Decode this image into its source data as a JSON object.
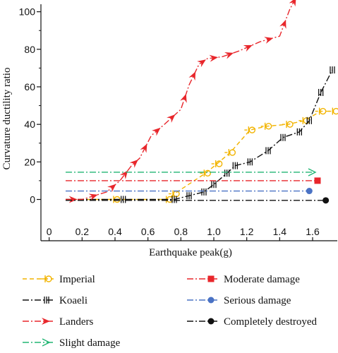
{
  "chart_data": {
    "type": "line",
    "xlabel": "Earthquake peak(g)",
    "ylabel": "Curvature ductility ratio",
    "xlim": [
      -0.05,
      1.75
    ],
    "ylim": [
      -22,
      104
    ],
    "x_ticks": [
      0,
      0.2,
      0.4,
      0.6,
      0.8,
      1.0,
      1.2,
      1.4,
      1.6
    ],
    "x_tick_labels": [
      "0",
      "0.2",
      "0.4",
      "0.6",
      "0.8",
      "1.0",
      "1.2",
      "1.4",
      "1.6"
    ],
    "y_ticks": [
      0,
      20,
      40,
      60,
      80,
      100
    ],
    "y_tick_labels": [
      "0",
      "20",
      "40",
      "60",
      "80",
      "100"
    ],
    "grid": false,
    "legend_position": "bottom",
    "series": [
      {
        "name": "Imperial",
        "color": "#f2b400",
        "style": "dashed-marker-circle",
        "x": [
          0.1,
          0.4,
          0.72,
          0.76,
          0.95,
          1.02,
          1.1,
          1.22,
          1.32,
          1.45,
          1.55,
          1.65,
          1.73
        ],
        "y": [
          0,
          0,
          0,
          3,
          14,
          19,
          25,
          37,
          39,
          40,
          42,
          47,
          47
        ]
      },
      {
        "name": "Koaeli",
        "color": "#111111",
        "style": "dashdot-marker-bars",
        "x": [
          0.1,
          0.45,
          0.76,
          0.85,
          0.94,
          1.0,
          1.08,
          1.13,
          1.22,
          1.33,
          1.42,
          1.52,
          1.58,
          1.65,
          1.72
        ],
        "y": [
          0,
          0,
          0,
          2,
          4,
          8,
          14,
          18,
          20,
          26,
          33,
          36,
          42,
          57,
          69
        ]
      },
      {
        "name": "Landers",
        "color": "#e8262b",
        "style": "dashdot-marker-arrow",
        "x": [
          0.1,
          0.2,
          0.35,
          0.43,
          0.5,
          0.55,
          0.62,
          0.7,
          0.8,
          0.85,
          0.91,
          0.96,
          1.05,
          1.15,
          1.28,
          1.4,
          1.46,
          1.52,
          1.64
        ],
        "y": [
          0,
          0,
          4,
          10,
          18,
          22,
          34,
          40,
          48,
          61,
          72,
          75,
          76,
          79,
          84,
          87,
          101,
          111,
          112
        ]
      },
      {
        "name": "Slight damage",
        "color": "#22b573",
        "style": "dashdot-marker-open-arrow",
        "x": [
          0.1,
          1.6
        ],
        "y": [
          14.5,
          14.5
        ]
      },
      {
        "name": "Moderate damage",
        "color": "#e8262b",
        "style": "dashdot-marker-square",
        "x": [
          0.1,
          1.63
        ],
        "y": [
          10,
          10
        ]
      },
      {
        "name": "Serious damage",
        "color": "#4a72c4",
        "style": "dashdot-marker-dot",
        "x": [
          0.1,
          1.58
        ],
        "y": [
          4.5,
          4.5
        ]
      },
      {
        "name": "Completely destroyed",
        "color": "#111111",
        "style": "dashdot-marker-diamond",
        "x": [
          0.1,
          1.68
        ],
        "y": [
          -0.5,
          -0.5
        ]
      }
    ],
    "legend_order": [
      "Imperial",
      "Moderate damage",
      "Koaeli",
      "Serious damage",
      "Landers",
      "Completely destroyed",
      "Slight damage"
    ]
  }
}
